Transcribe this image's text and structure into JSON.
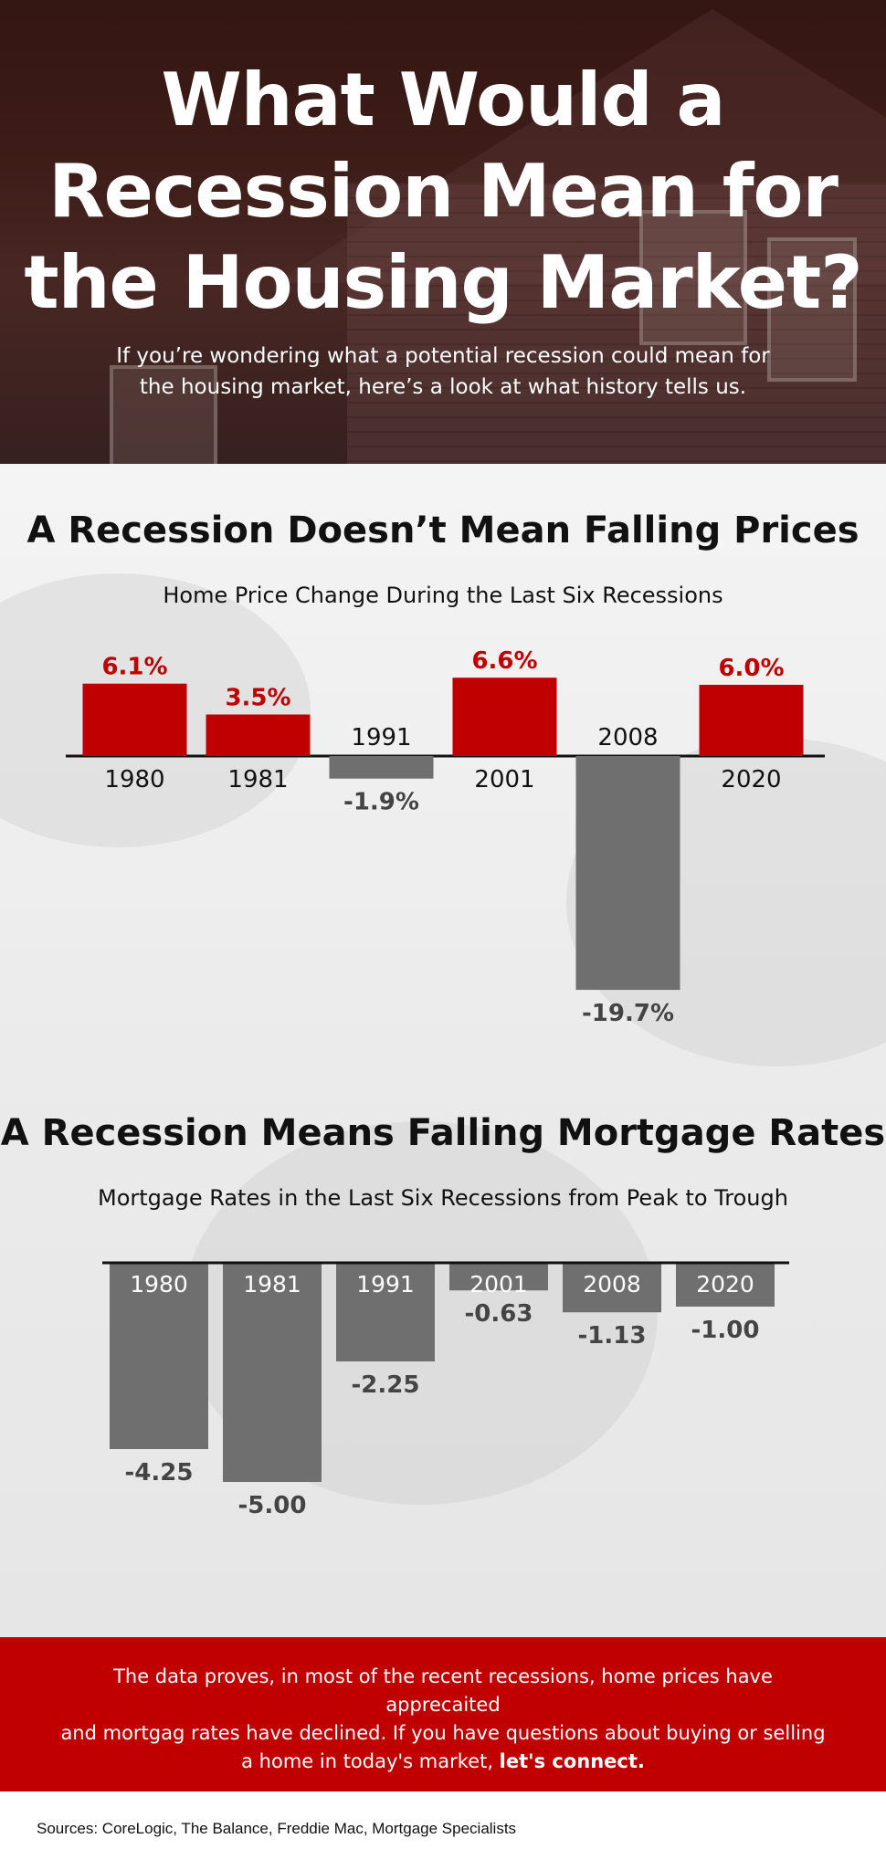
{
  "hero": {
    "title_lines": [
      "What Would a",
      "Recession Mean for",
      "the Housing Market?"
    ],
    "subtitle_lines": [
      "If you’re wondering what a potential recession could mean for",
      "the housing market, here’s a look at what history tells us."
    ]
  },
  "section1": {
    "heading": "A Recession Doesn’t Mean Falling Prices",
    "chart_subtitle": "Home Price Change During the Last Six Recessions"
  },
  "section2": {
    "heading": "A Recession Means Falling Mortgage Rates",
    "chart_subtitle": "Mortgage Rates in the Last Six Recessions from Peak to Trough"
  },
  "cta": {
    "line1": "The data proves, in most of the recent recessions, home prices have apprecaited",
    "line2": "and mortgag rates have declined. If you have questions about buying or selling",
    "line3_prefix": "a home in today's market, ",
    "line3_bold": "let's connect."
  },
  "sources": "Sources: CoreLogic, The Balance, Freddie Mac, Mortgage Specialists",
  "colors": {
    "accent_red": "#c00000",
    "bar_gray": "#6f6f6f",
    "text_dark": "#111111",
    "label_gray": "#444444"
  },
  "chart_data": [
    {
      "type": "bar",
      "title": "Home Price Change During the Last Six Recessions",
      "categories": [
        "1980",
        "1981",
        "1991",
        "2001",
        "2008",
        "2020"
      ],
      "values": [
        6.1,
        3.5,
        -1.9,
        6.6,
        -19.7,
        6.0
      ],
      "value_labels": [
        "6.1%",
        "3.5%",
        "-1.9%",
        "6.6%",
        "-19.7%",
        "6.0%"
      ],
      "unit": "%",
      "xlabel": "",
      "ylabel": "",
      "positive_color": "#c00000",
      "negative_color": "#6f6f6f"
    },
    {
      "type": "bar",
      "title": "Mortgage Rates in the Last Six Recessions from Peak to Trough",
      "categories": [
        "1980",
        "1981",
        "1991",
        "2001",
        "2008",
        "2020"
      ],
      "values": [
        -4.25,
        -5.0,
        -2.25,
        -0.63,
        -1.13,
        -1.0
      ],
      "value_labels": [
        "-4.25",
        "-5.00",
        "-2.25",
        "-0.63",
        "-1.13",
        "-1.00"
      ],
      "xlabel": "",
      "ylabel": "",
      "bar_color": "#6f6f6f"
    }
  ]
}
